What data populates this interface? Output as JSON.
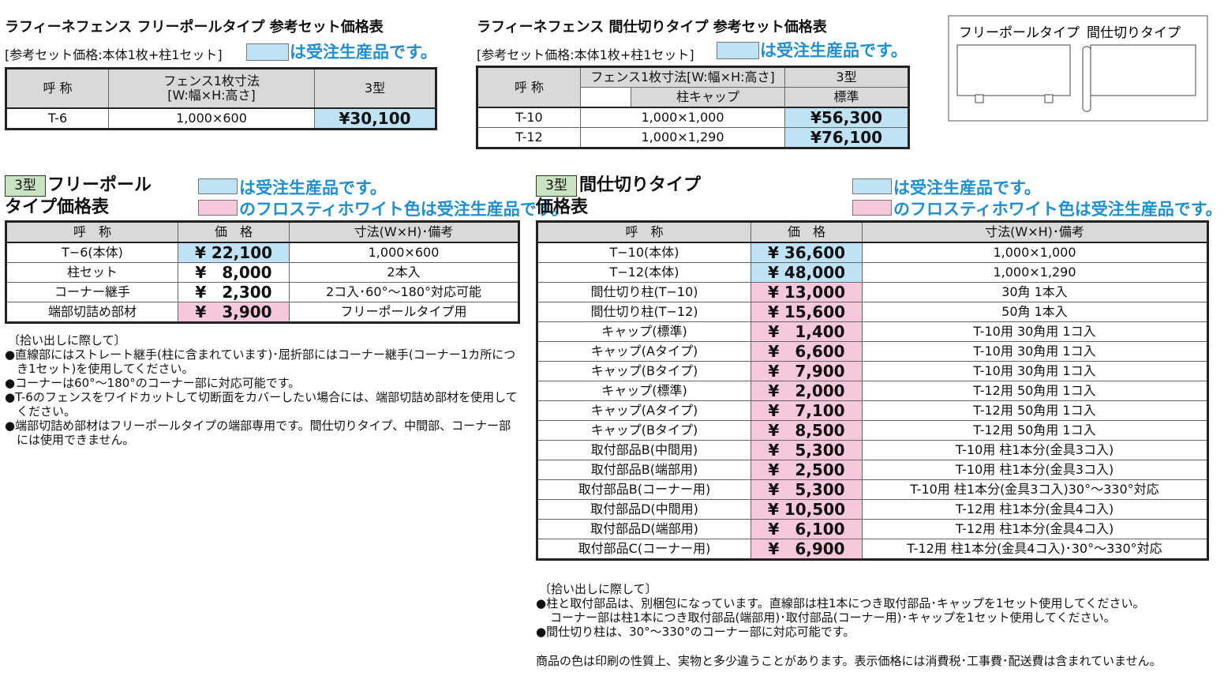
{
  "set_free_pole": {
    "title": "ラフィーネフェンス フリーポールタイプ 参考セット価格表",
    "subtitle": "[参考セット価格:本体1枚+柱1セット]",
    "legend": {
      "color": "#bfe3f5",
      "text": "は受注生産品です。"
    },
    "headers": [
      "呼 称",
      "フェンス1枚寸法",
      "[W:幅×H:高さ]",
      "3型"
    ],
    "rows": [
      {
        "name": "T-6",
        "size": "1,000×600",
        "price": "¥30,100",
        "highlight": "#bfe3f5"
      }
    ]
  },
  "set_partition": {
    "title": "ラフィーネフェンス 間仕切りタイプ 参考セット価格表",
    "subtitle": "[参考セット価格:本体1枚+柱1セット]",
    "legend": {
      "color": "#bfe3f5",
      "text": "は受注生産品です。"
    },
    "headers": [
      "呼 称",
      "フェンス1枚寸法[W:幅×H:高さ]",
      "3型",
      "柱キャップ",
      "標準"
    ],
    "rows": [
      {
        "name": "T-10",
        "size": "1,000×1,000",
        "price": "¥56,300",
        "highlight": "#bfe3f5"
      },
      {
        "name": "T-12",
        "size": "1,000×1,290",
        "price": "¥76,100",
        "highlight": "#bfe3f5"
      }
    ]
  },
  "diagram": {
    "labels": [
      "フリーポールタイプ",
      "間仕切りタイプ"
    ]
  },
  "free_pole": {
    "badge": "3型",
    "title_lines": [
      "フリーポール",
      "タイプ価格表"
    ],
    "legends": [
      {
        "color": "#bfe3f5",
        "text": "は受注生産品です。"
      },
      {
        "color": "#f7c8dc",
        "text": "のフロスティホワイト色は受注生産品です。"
      }
    ],
    "headers": [
      "呼　称",
      "価　格",
      "寸法(W×H)･備考"
    ],
    "rows": [
      {
        "name": "T−6(本体)",
        "price": "¥ 22,100",
        "note": "1,000×600",
        "highlight": "#bfe3f5"
      },
      {
        "name": "柱セット",
        "price": "¥　8,000",
        "note": "2本入",
        "highlight": null
      },
      {
        "name": "コーナー継手",
        "price": "¥　2,300",
        "note": "2コ入･60°〜180°対応可能",
        "highlight": null
      },
      {
        "name": "端部切詰め部材",
        "price": "¥　3,900",
        "note": "フリーポールタイプ用",
        "highlight": "#f7c8dc"
      }
    ],
    "notes": [
      "〔拾い出しに際して〕",
      "●直線部にはストレート継手(柱に含まれています)･屈折部にはコーナー継手(コーナー1カ所につき1セット)を使用してください。",
      "●コーナーは60°〜180°のコーナー部に対応可能です。",
      "●T-6のフェンスをワイドカットして切断面をカバーしたい場合には、端部切詰め部材を使用してください。",
      "●端部切詰め部材はフリーポールタイプの端部専用です。間仕切りタイプ、中間部、コーナー部には使用できません。"
    ]
  },
  "partition": {
    "badge": "3型",
    "title_lines": [
      "間仕切りタイプ",
      "価格表"
    ],
    "legends": [
      {
        "color": "#bfe3f5",
        "text": "は受注生産品です。"
      },
      {
        "color": "#f7c8dc",
        "text": "のフロスティホワイト色は受注生産品です。"
      }
    ],
    "headers": [
      "呼　称",
      "価　格",
      "寸法(W×H)･備考"
    ],
    "rows": [
      {
        "name": "T−10(本体)",
        "price": "¥ 36,600",
        "note": "1,000×1,000",
        "highlight": "#bfe3f5"
      },
      {
        "name": "T−12(本体)",
        "price": "¥ 48,000",
        "note": "1,000×1,290",
        "highlight": "#bfe3f5"
      },
      {
        "name": "間仕切り柱(T−10)",
        "price": "¥ 13,000",
        "note": "30角 1本入",
        "highlight": "#f7c8dc"
      },
      {
        "name": "間仕切り柱(T−12)",
        "price": "¥ 15,600",
        "note": "50角 1本入",
        "highlight": "#f7c8dc"
      },
      {
        "name": "キャップ(標準)",
        "price": "¥　1,400",
        "note": "T-10用 30角用 1コ入",
        "highlight": "#f7c8dc"
      },
      {
        "name": "キャップ(Aタイプ)",
        "price": "¥　6,600",
        "note": "T-10用 30角用 1コ入",
        "highlight": "#f7c8dc"
      },
      {
        "name": "キャップ(Bタイプ)",
        "price": "¥　7,900",
        "note": "T-10用 30角用 1コ入",
        "highlight": "#f7c8dc"
      },
      {
        "name": "キャップ(標準)",
        "price": "¥　2,000",
        "note": "T-12用 50角用 1コ入",
        "highlight": "#f7c8dc"
      },
      {
        "name": "キャップ(Aタイプ)",
        "price": "¥　7,100",
        "note": "T-12用 50角用 1コ入",
        "highlight": "#f7c8dc"
      },
      {
        "name": "キャップ(Bタイプ)",
        "price": "¥　8,500",
        "note": "T-12用 50角用 1コ入",
        "highlight": "#f7c8dc"
      },
      {
        "name": "取付部品B(中間用)",
        "price": "¥　5,300",
        "note": "T-10用 柱1本分(金具3コ入)",
        "highlight": "#f7c8dc"
      },
      {
        "name": "取付部品B(端部用)",
        "price": "¥　2,500",
        "note": "T-10用 柱1本分(金具3コ入)",
        "highlight": "#f7c8dc"
      },
      {
        "name": "取付部品B(コーナー用)",
        "price": "¥　5,300",
        "note": "T-10用 柱1本分(金具3コ入)30°〜330°対応",
        "highlight": "#f7c8dc"
      },
      {
        "name": "取付部品D(中間用)",
        "price": "¥ 10,500",
        "note": "T-12用 柱1本分(金具4コ入)",
        "highlight": "#f7c8dc"
      },
      {
        "name": "取付部品D(端部用)",
        "price": "¥　6,100",
        "note": "T-12用 柱1本分(金具4コ入)",
        "highlight": "#f7c8dc"
      },
      {
        "name": "取付部品C(コーナー用)",
        "price": "¥　6,900",
        "note": "T-12用 柱1本分(金具4コ入)･30°〜330°対応",
        "highlight": "#f7c8dc"
      }
    ],
    "notes": [
      "〔拾い出しに際して〕",
      "●柱と取付部品は、別梱包になっています。直線部は柱1本につき取付部品･キャップを1セット使用してください。",
      "コーナー部は柱1本につき取付部品(端部用)･取付部品(コーナー用)･キャップを1セット使用してください。",
      "●間仕切り柱は、30°〜330°のコーナー部に対応可能です。"
    ],
    "footer": "商品の色は印刷の性質上、実物と多少違うことがあります。表示価格には消費税･工事費･配送費は含まれていません。"
  }
}
